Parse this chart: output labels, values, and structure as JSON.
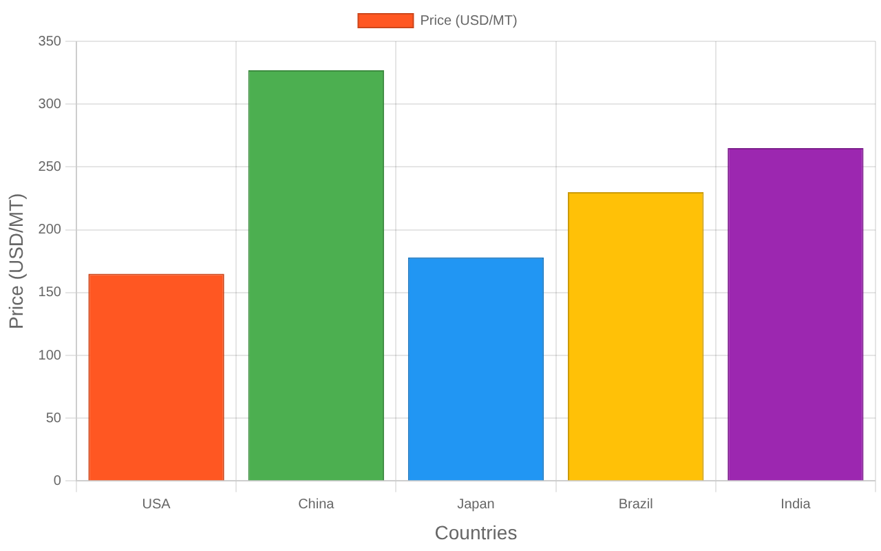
{
  "chart_data": {
    "type": "bar",
    "xlabel": "Countries",
    "ylabel": "Price (USD/MT)",
    "categories": [
      "USA",
      "China",
      "Japan",
      "Brazil",
      "India"
    ],
    "series": [
      {
        "name": "Price (USD/MT)",
        "colors": [
          "#ff5722",
          "#4caf50",
          "#2196f3",
          "#ffc107",
          "#9c27b0"
        ],
        "values": [
          165,
          327,
          178,
          230,
          265
        ]
      }
    ],
    "ylim": [
      0,
      350
    ],
    "yticks": [
      0,
      50,
      100,
      150,
      200,
      250,
      300,
      350
    ],
    "grid": true,
    "legend": "top"
  }
}
